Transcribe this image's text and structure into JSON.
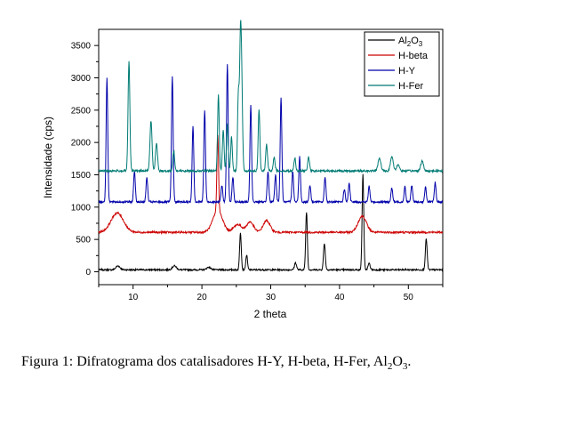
{
  "caption": {
    "main": "Figura 1: Difratograma dos catalisadores H-Y, H-beta, H-Fer, Al",
    "sub": "2",
    "tail": "O",
    "sub2": "3",
    "end": "."
  },
  "chart_data": {
    "type": "line",
    "xlabel": "2 theta",
    "ylabel": "Intensidade (cps)",
    "xlim": [
      5,
      55
    ],
    "ylim": [
      -200,
      3750
    ],
    "xticks": [
      10,
      20,
      30,
      40,
      50
    ],
    "yticks": [
      0,
      500,
      1000,
      1500,
      2000,
      2500,
      3000,
      3500
    ],
    "grid": false,
    "legend_position": "top-right",
    "series": [
      {
        "name": "Al2O3",
        "color": "#000000",
        "baseline": 30,
        "noise": 12,
        "peaks": [
          [
            7.8,
            60,
            0.3
          ],
          [
            16,
            60,
            0.3
          ],
          [
            21,
            40,
            0.3
          ],
          [
            25.6,
            580,
            0.12
          ],
          [
            26.5,
            230,
            0.12
          ],
          [
            33.6,
            110,
            0.15
          ],
          [
            35.2,
            900,
            0.12
          ],
          [
            37.8,
            410,
            0.13
          ],
          [
            43.4,
            1480,
            0.12
          ],
          [
            44.3,
            100,
            0.15
          ],
          [
            52.6,
            480,
            0.13
          ]
        ]
      },
      {
        "name": "H-beta",
        "color": "#cc0000",
        "baseline": 610,
        "noise": 15,
        "peaks": [
          [
            7.7,
            300,
            0.9
          ],
          [
            22.3,
            330,
            0.7
          ],
          [
            22.3,
            1180,
            0.12
          ],
          [
            25.2,
            120,
            0.6
          ],
          [
            27,
            160,
            0.5
          ],
          [
            29.4,
            180,
            0.5
          ],
          [
            43.3,
            250,
            0.6
          ]
        ]
      },
      {
        "name": "H-Y",
        "color": "#0000aa",
        "baseline": 1080,
        "noise": 15,
        "peaks": [
          [
            6.2,
            1920,
            0.12
          ],
          [
            10.2,
            480,
            0.12
          ],
          [
            12,
            380,
            0.12
          ],
          [
            15.7,
            1940,
            0.12
          ],
          [
            18.7,
            1180,
            0.12
          ],
          [
            20.4,
            1420,
            0.12
          ],
          [
            22.9,
            260,
            0.12
          ],
          [
            23.7,
            2120,
            0.12
          ],
          [
            24.5,
            380,
            0.12
          ],
          [
            27.1,
            1500,
            0.12
          ],
          [
            29.6,
            480,
            0.12
          ],
          [
            30.7,
            420,
            0.12
          ],
          [
            31.5,
            1620,
            0.12
          ],
          [
            33.2,
            480,
            0.12
          ],
          [
            34.2,
            700,
            0.12
          ],
          [
            35.7,
            260,
            0.12
          ],
          [
            37.9,
            380,
            0.12
          ],
          [
            40.7,
            200,
            0.12
          ],
          [
            41.4,
            280,
            0.12
          ],
          [
            44.3,
            240,
            0.12
          ],
          [
            47.6,
            220,
            0.12
          ],
          [
            49.5,
            240,
            0.12
          ],
          [
            50.5,
            260,
            0.12
          ],
          [
            52.5,
            230,
            0.12
          ],
          [
            53.9,
            300,
            0.12
          ]
        ]
      },
      {
        "name": "H-Fer",
        "color": "#007b74",
        "baseline": 1560,
        "noise": 16,
        "peaks": [
          [
            9.4,
            1700,
            0.13
          ],
          [
            12.6,
            770,
            0.15
          ],
          [
            13.4,
            420,
            0.15
          ],
          [
            15.9,
            320,
            0.13
          ],
          [
            22.4,
            1170,
            0.12
          ],
          [
            23.1,
            640,
            0.12
          ],
          [
            23.7,
            720,
            0.12
          ],
          [
            24.3,
            520,
            0.12
          ],
          [
            25.3,
            1200,
            0.12
          ],
          [
            25.6,
            1960,
            0.12
          ],
          [
            25.8,
            1150,
            0.12
          ],
          [
            28.3,
            960,
            0.12
          ],
          [
            29.4,
            410,
            0.13
          ],
          [
            30.5,
            220,
            0.13
          ],
          [
            33.5,
            200,
            0.13
          ],
          [
            35.5,
            220,
            0.13
          ],
          [
            45.8,
            200,
            0.2
          ],
          [
            47.6,
            220,
            0.2
          ],
          [
            48.5,
            100,
            0.2
          ],
          [
            52,
            150,
            0.2
          ]
        ]
      }
    ]
  }
}
